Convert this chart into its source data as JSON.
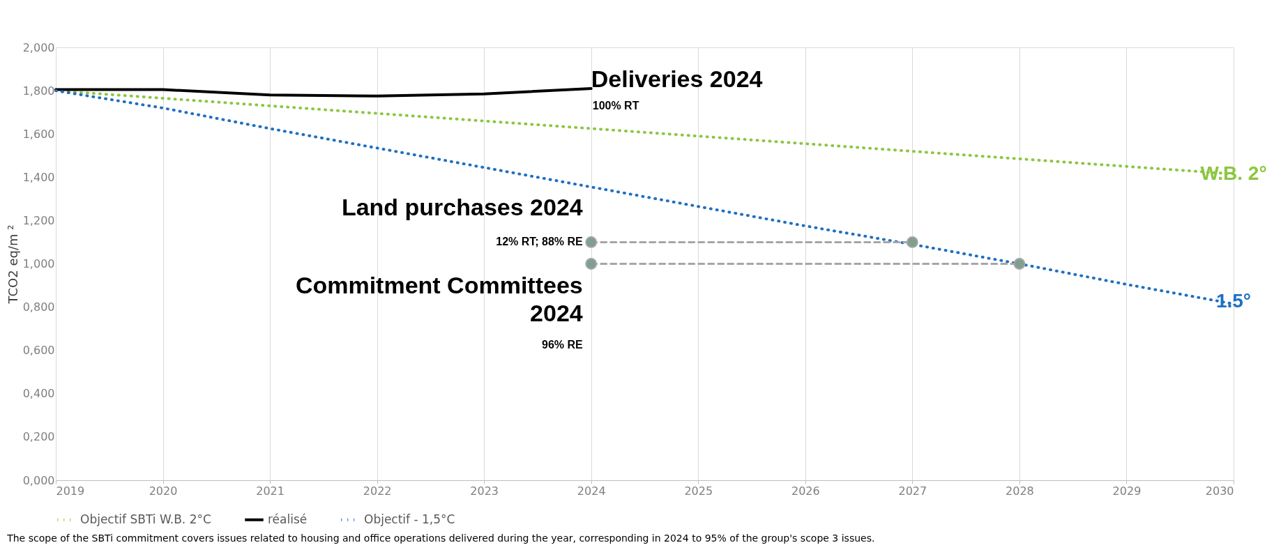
{
  "chart_data": {
    "type": "line",
    "ylabel": "TCO2 eq/m ²",
    "x": [
      2019,
      2020,
      2021,
      2022,
      2023,
      2024,
      2025,
      2026,
      2027,
      2028,
      2029,
      2030
    ],
    "series": [
      {
        "name": "Objectif SBTi W.B. 2°C",
        "color": "#8cc63f",
        "line_style": "dotted",
        "values": [
          1.8,
          1.765,
          1.73,
          1.695,
          1.66,
          1.625,
          1.59,
          1.555,
          1.52,
          1.485,
          1.45,
          1.415
        ]
      },
      {
        "name": "réalisé",
        "color": "#000000",
        "line_style": "solid",
        "values": [
          1.805,
          1.805,
          1.78,
          1.775,
          1.785,
          1.81,
          null,
          null,
          null,
          null,
          null,
          null
        ]
      },
      {
        "name": "Objectif - 1,5°C",
        "color": "#1f6fc1",
        "line_style": "dotted",
        "values": [
          1.8,
          1.72,
          1.625,
          1.535,
          1.445,
          1.355,
          1.265,
          1.175,
          1.09,
          1.0,
          0.905,
          0.815
        ]
      },
      {
        "type": "line",
        "color": "#a6a6a6",
        "line_style": "dashed",
        "marker": "circle",
        "x": [
          2024,
          2027
        ],
        "values": [
          1.1,
          1.1
        ]
      },
      {
        "type": "line",
        "color": "#a6a6a6",
        "line_style": "dashed",
        "marker": "circle",
        "x": [
          2024,
          2028
        ],
        "values": [
          1.0,
          1.0
        ]
      }
    ],
    "xlim": [
      2019,
      2030
    ],
    "xticks": [
      2019,
      2020,
      2021,
      2022,
      2023,
      2024,
      2025,
      2026,
      2027,
      2028,
      2029,
      2030
    ],
    "ylim": [
      0,
      2
    ],
    "yticks": [
      {
        "value": 0,
        "label": "0,000"
      },
      {
        "value": 0.2,
        "label": "0,200"
      },
      {
        "value": 0.4,
        "label": "0,400"
      },
      {
        "value": 0.6,
        "label": "0,600"
      },
      {
        "value": 0.8,
        "label": "0,800"
      },
      {
        "value": 1.0,
        "label": "1,000"
      },
      {
        "value": 1.2,
        "label": "1,200"
      },
      {
        "value": 1.4,
        "label": "1,400"
      },
      {
        "value": 1.6,
        "label": "1,600"
      },
      {
        "value": 1.8,
        "label": "1,800"
      },
      {
        "value": 2.0,
        "label": "2,000"
      }
    ],
    "grid": "x",
    "legend": "bottom",
    "annotations": [
      "Deliveries 2024",
      "100% RT",
      "Land purchases 2024",
      "12% RT; 88% RE",
      "Commitment Committees 2024",
      "96% RE",
      "W.B. 2°",
      "1.5°",
      "The scope of the SBTi commitment covers issues related to housing and office operations delivered during the year, corresponding in 2024 to 95% of the group's scope 3 issues."
    ]
  }
}
